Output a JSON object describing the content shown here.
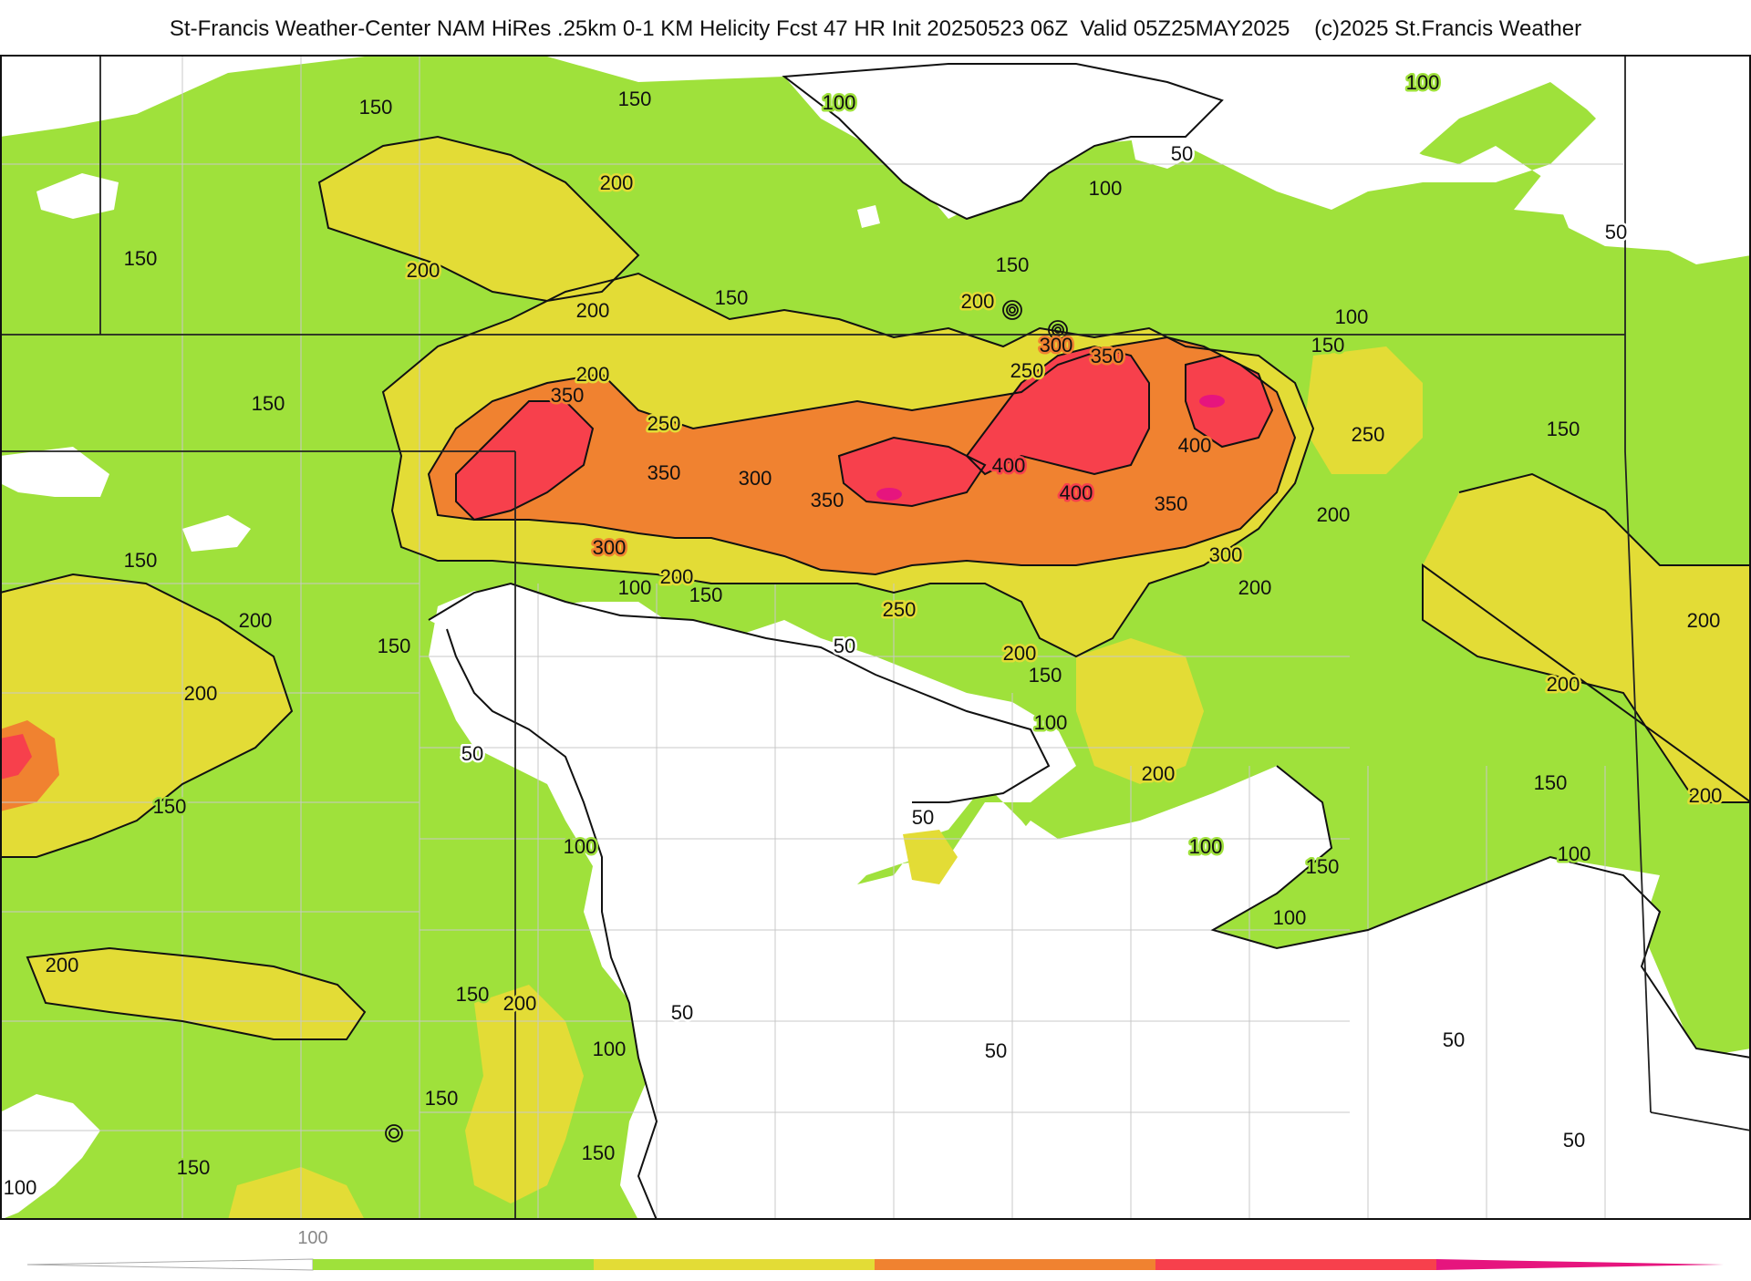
{
  "header": {
    "title": "St-Francis Weather-Center NAM HiRes .25km 0-1 KM Helicity Fcst 47 HR Init 20250523 06Z  Valid 05Z25MAY2025    (c)2025 St.Francis Weather"
  },
  "colors": {
    "lt100": "#ffffff",
    "c100_200": "#9fe13b",
    "c200_300": "#e3dc36",
    "c300_400": "#f08230",
    "c400_500": "#f7404c",
    "c500": "#e6157e",
    "contour": "#111111",
    "border": "#222222",
    "county": "#c8c8c8"
  },
  "contour_labels": {
    "l150a": "150",
    "l150b": "150",
    "l100a": "100",
    "l100b": "100",
    "l50a": "50",
    "l50b": "50",
    "l200a": "200",
    "l150c": "150",
    "l200b": "200",
    "l200c": "200",
    "l150d": "150",
    "l150e": "150",
    "l100c": "100",
    "l200d": "200",
    "l300a": "300",
    "l350a": "350",
    "l250a": "250",
    "l100d": "100",
    "l150f": "150",
    "l200e": "200",
    "l350b": "350",
    "l250b": "250",
    "l350c": "350",
    "l300b": "300",
    "l250c": "250",
    "l150g": "150",
    "l350d": "350",
    "l400a": "400",
    "l400b": "400",
    "l400c": "400",
    "l350e": "350",
    "l150h": "150",
    "l300c": "300",
    "l100e": "100",
    "l200f": "200",
    "l150i": "150",
    "l250d": "250",
    "l50c": "50",
    "l200g": "200",
    "l150j": "150",
    "l200h": "200",
    "l150k": "150",
    "l200i": "200",
    "l300d": "300",
    "l200j": "200",
    "l200k": "200",
    "l100f": "100",
    "l150l": "150",
    "l50d": "50",
    "l100g": "100",
    "l200l": "200",
    "l50e": "50",
    "l100h": "100",
    "l150m": "150",
    "l100i": "100",
    "l200m": "200",
    "l100j": "100",
    "l200n": "200",
    "l150n": "150",
    "l200o": "200",
    "l150o": "150",
    "l150p": "150",
    "l50f": "50",
    "l100k": "100",
    "l50g": "50",
    "l50h": "50",
    "l150q": "150",
    "l150r": "150",
    "l100l": "100",
    "l150s": "150",
    "l50i": "50",
    "l100m": "100"
  },
  "legend": {
    "tick_label": "100"
  }
}
